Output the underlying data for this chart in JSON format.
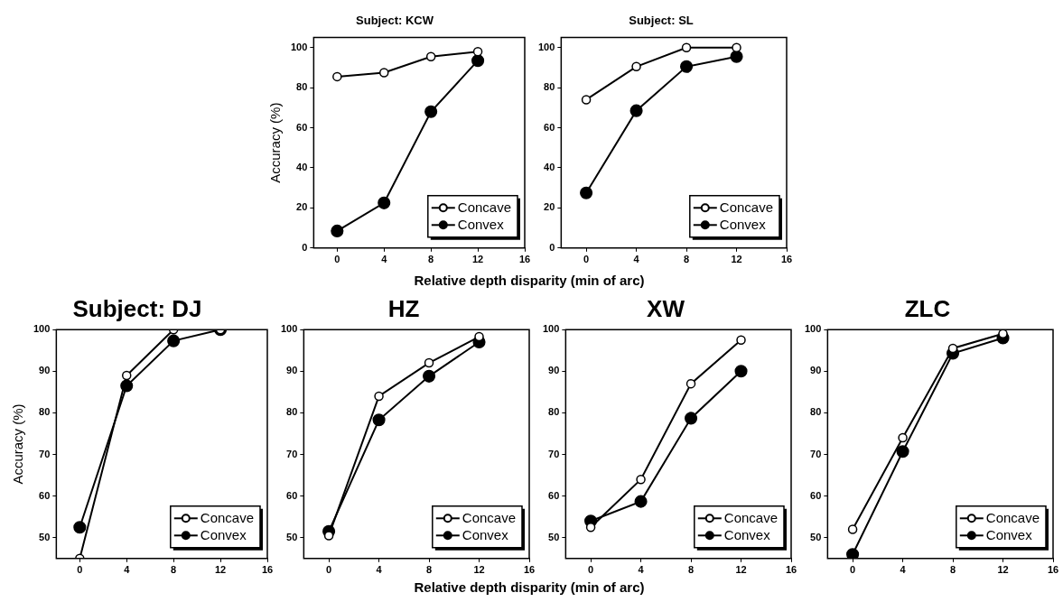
{
  "chart_data": [
    {
      "type": "line",
      "title": "Subject: KCW",
      "ylabel": "Accuracy (%)",
      "xlabel": "Relative depth disparity (min of arc)",
      "x": [
        0,
        4,
        8,
        12
      ],
      "xlim": [
        -2,
        16
      ],
      "xticks": [
        0,
        4,
        8,
        12,
        16
      ],
      "ylim": [
        0,
        105
      ],
      "yticks": [
        0,
        20,
        40,
        60,
        80,
        100
      ],
      "marker": "circle",
      "legend": "bottom right",
      "series": [
        {
          "name": "Concave",
          "color": "#000000",
          "values": [
            85.5,
            87.5,
            95.5,
            98
          ]
        },
        {
          "name": "Convex",
          "color": "#000000",
          "values": [
            8.5,
            22.5,
            68,
            93.5
          ]
        }
      ]
    },
    {
      "type": "line",
      "title": "Subject: SL",
      "x": [
        0,
        4,
        8,
        12
      ],
      "xlim": [
        -2,
        16
      ],
      "xticks": [
        0,
        4,
        8,
        12,
        16
      ],
      "ylim": [
        0,
        105
      ],
      "yticks": [
        0,
        20,
        40,
        60,
        80,
        100
      ],
      "marker": "circle",
      "legend": "bottom right",
      "series": [
        {
          "name": "Concave",
          "color": "#000000",
          "values": [
            74,
            90.5,
            100,
            100
          ]
        },
        {
          "name": "Convex",
          "color": "#000000",
          "values": [
            27.5,
            68.5,
            90.5,
            95.5
          ]
        }
      ]
    },
    {
      "type": "line",
      "title": "Subject: DJ",
      "ylabel": "Accuracy (%)",
      "x": [
        0,
        4,
        8,
        12
      ],
      "xlim": [
        -2,
        16
      ],
      "xticks": [
        0,
        4,
        8,
        12,
        16
      ],
      "ylim": [
        45,
        100
      ],
      "yticks": [
        50,
        60,
        70,
        80,
        90,
        100
      ],
      "marker": "circle",
      "legend": "bottom right",
      "series": [
        {
          "name": "Concave",
          "color": "#000000",
          "values": [
            45,
            89,
            100,
            100
          ]
        },
        {
          "name": "Convex",
          "color": "#000000",
          "values": [
            52.5,
            86.5,
            97.3,
            100
          ]
        }
      ]
    },
    {
      "type": "line",
      "title": "HZ",
      "xlabel": "Relative depth disparity (min of arc)",
      "x": [
        0,
        4,
        8,
        12
      ],
      "xlim": [
        -2,
        16
      ],
      "xticks": [
        0,
        4,
        8,
        12,
        16
      ],
      "ylim": [
        45,
        100
      ],
      "yticks": [
        50,
        60,
        70,
        80,
        90,
        100
      ],
      "marker": "circle",
      "legend": "bottom right",
      "series": [
        {
          "name": "Concave",
          "color": "#000000",
          "values": [
            50.5,
            84,
            92,
            98.3
          ]
        },
        {
          "name": "Convex",
          "color": "#000000",
          "values": [
            51.5,
            78.3,
            88.8,
            97
          ]
        }
      ]
    },
    {
      "type": "line",
      "title": "XW",
      "x": [
        0,
        4,
        8,
        12
      ],
      "xlim": [
        -2,
        16
      ],
      "xticks": [
        0,
        4,
        8,
        12,
        16
      ],
      "ylim": [
        45,
        100
      ],
      "yticks": [
        50,
        60,
        70,
        80,
        90,
        100
      ],
      "marker": "circle",
      "legend": "bottom right",
      "series": [
        {
          "name": "Concave",
          "color": "#000000",
          "values": [
            52.5,
            64,
            87,
            97.5
          ]
        },
        {
          "name": "Convex",
          "color": "#000000",
          "values": [
            54,
            58.7,
            78.7,
            90
          ]
        }
      ]
    },
    {
      "type": "line",
      "title": "ZLC",
      "x": [
        0,
        4,
        8,
        12
      ],
      "xlim": [
        -2,
        16
      ],
      "xticks": [
        0,
        4,
        8,
        12,
        16
      ],
      "ylim": [
        45,
        100
      ],
      "yticks": [
        50,
        60,
        70,
        80,
        90,
        100
      ],
      "marker": "circle",
      "legend": "bottom right",
      "series": [
        {
          "name": "Concave",
          "color": "#000000",
          "values": [
            52,
            74,
            95.5,
            99
          ]
        },
        {
          "name": "Convex",
          "color": "#000000",
          "values": [
            46,
            70.7,
            94.3,
            98
          ]
        }
      ]
    }
  ]
}
